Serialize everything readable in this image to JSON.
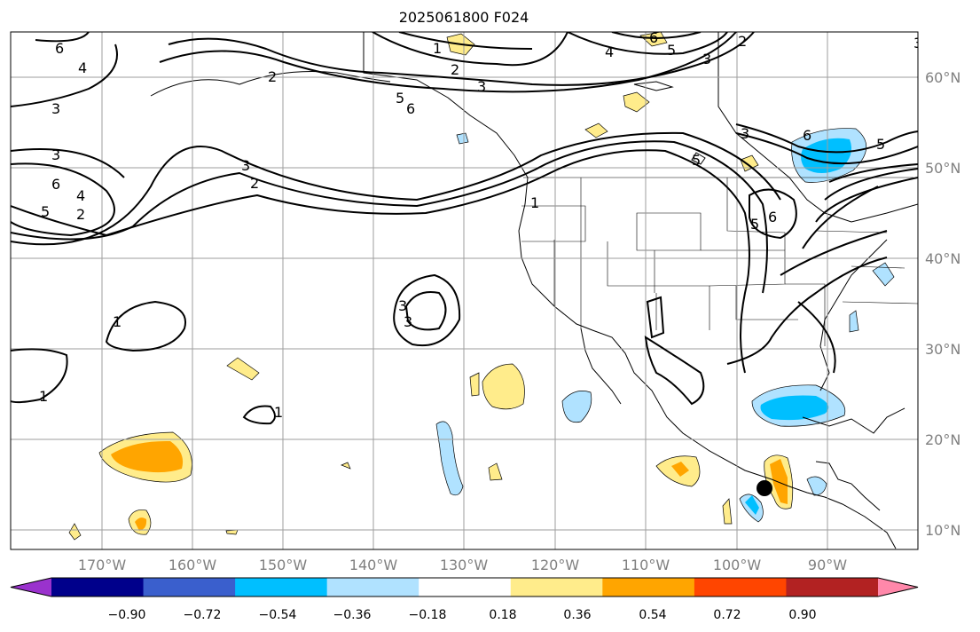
{
  "title": "2025061800 F024",
  "lon_labels": [
    "170°W",
    "160°W",
    "150°W",
    "140°W",
    "130°W",
    "120°W",
    "110°W",
    "100°W",
    "90°W"
  ],
  "lat_labels": [
    "60°N",
    "50°N",
    "40°N",
    "30°N",
    "20°N",
    "10°N"
  ],
  "colorbar": {
    "ticks": [
      "−0.90",
      "−0.72",
      "−0.54",
      "−0.36",
      "−0.18",
      "0.18",
      "0.36",
      "0.54",
      "0.72",
      "0.90"
    ],
    "colors": [
      "#9a32cd",
      "#00008b",
      "#3a5fcd",
      "#00bfff",
      "#b0e2ff",
      "#ffffff",
      "#ffec8b",
      "#ffa500",
      "#ff4500",
      "#b22222",
      "#ff88aa"
    ]
  },
  "contour_labels": [
    "6",
    "4",
    "3",
    "3",
    "6",
    "5",
    "4",
    "2",
    "1",
    "2",
    "3",
    "4",
    "5",
    "6",
    "3",
    "2",
    "5",
    "6",
    "3",
    "2",
    "1",
    "6",
    "5",
    "3",
    "2",
    "5",
    "3",
    "6",
    "5",
    "6",
    "5",
    "3",
    "3",
    "1",
    "1",
    "1"
  ],
  "marker": "storm-center-dot"
}
